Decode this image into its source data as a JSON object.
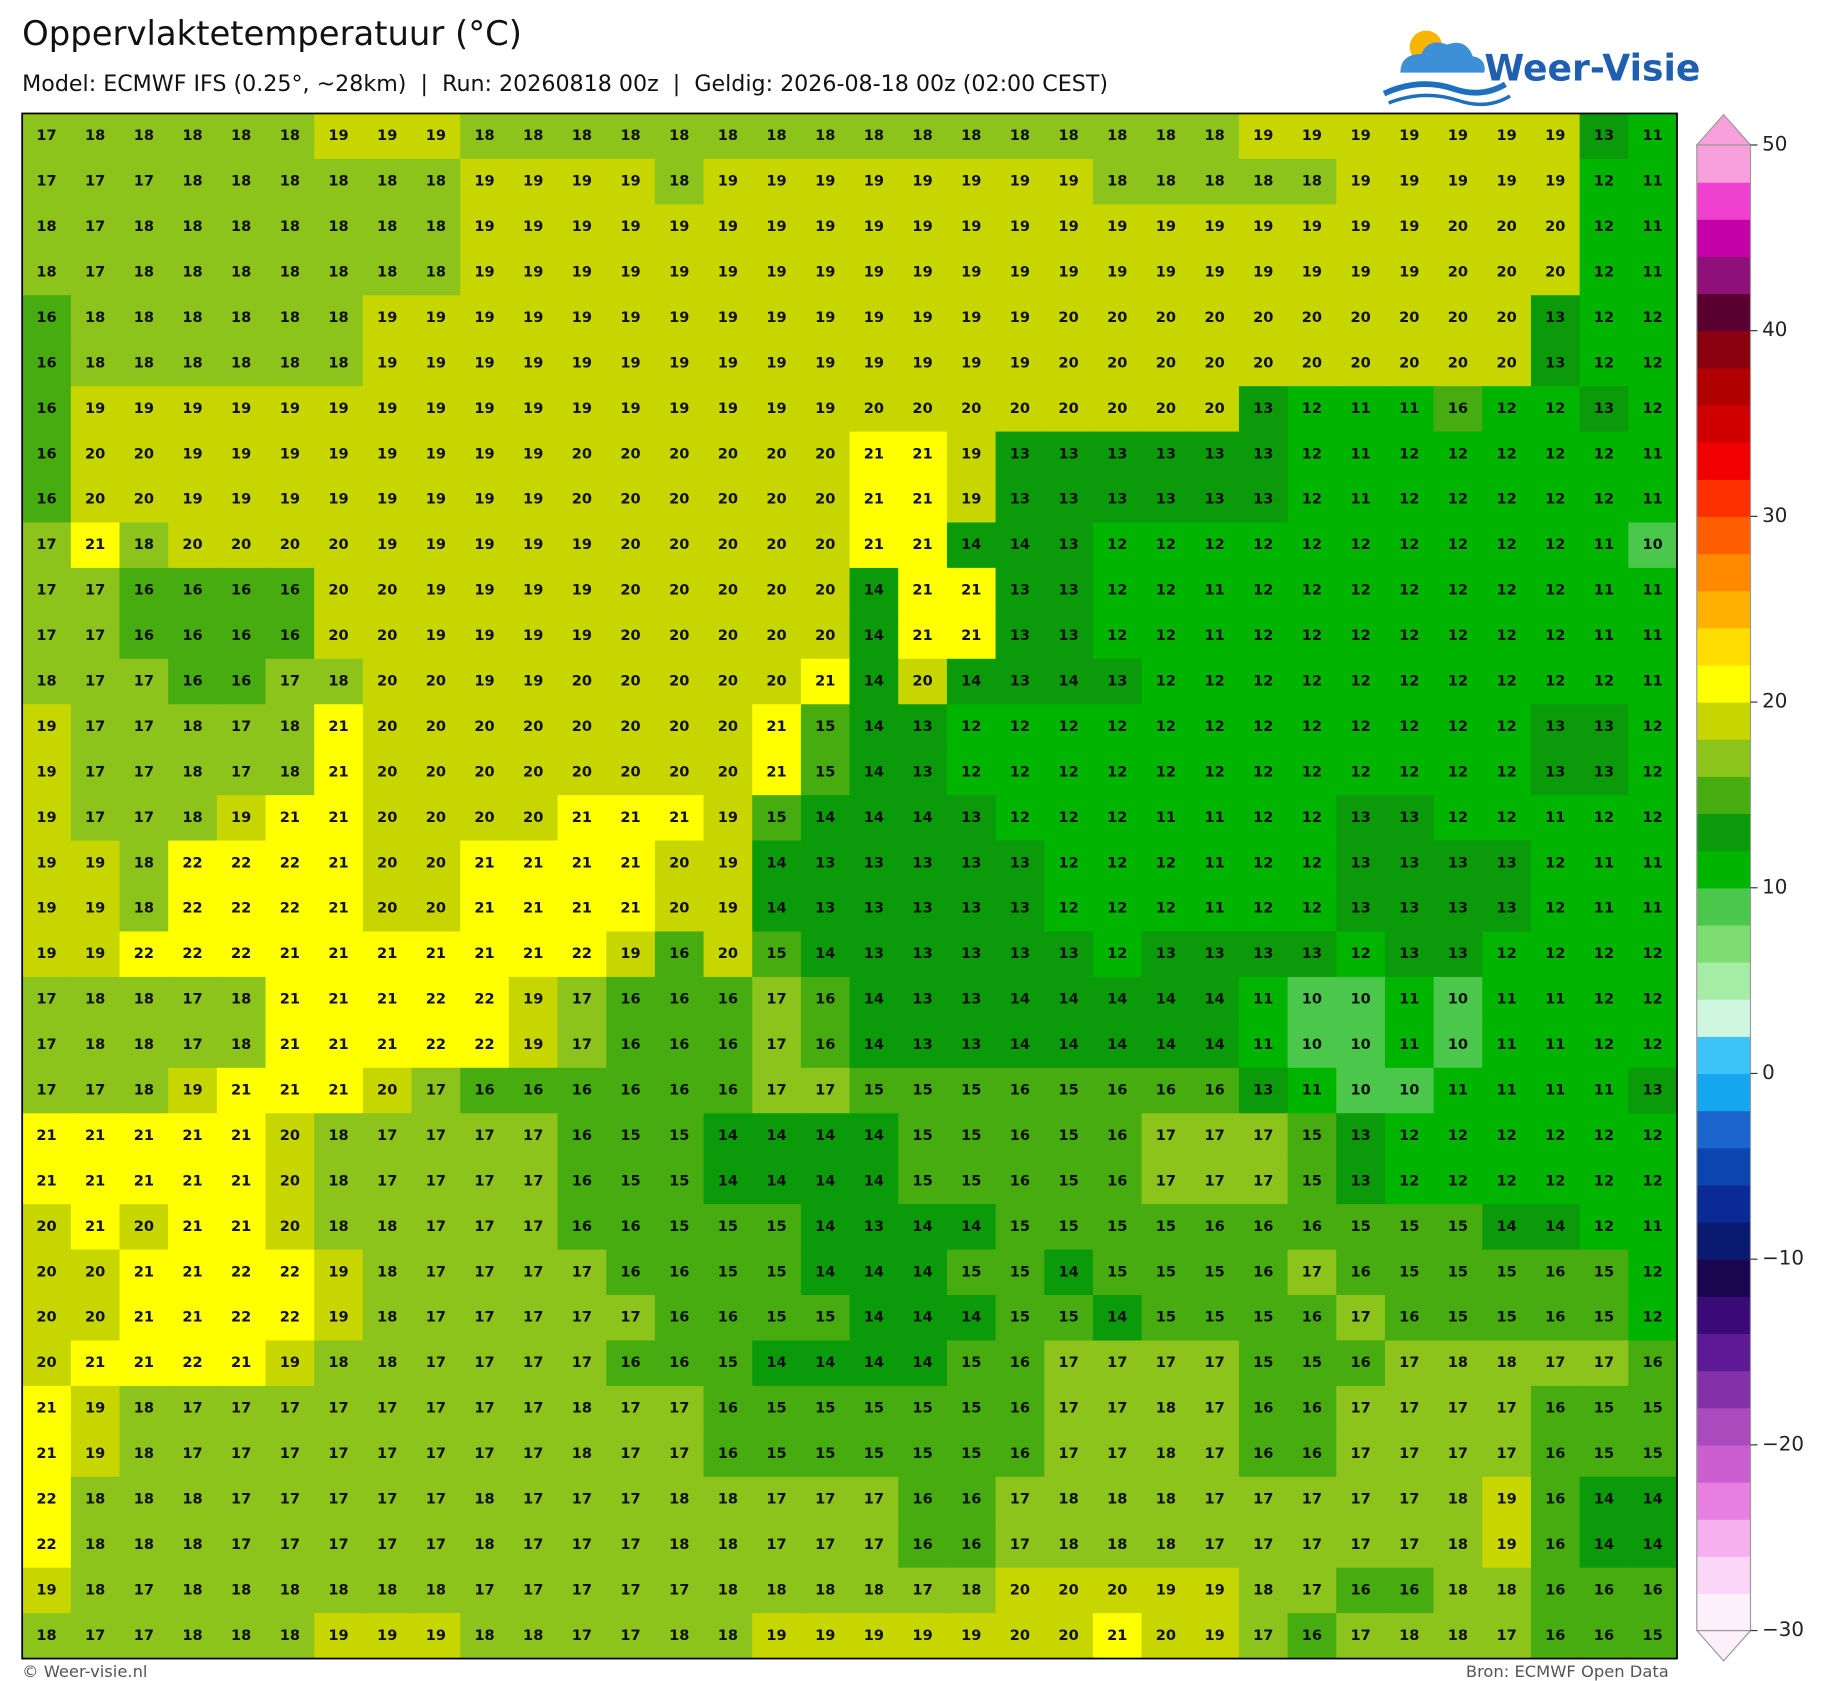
{
  "chart_data": {
    "type": "heatmap",
    "title": "Oppervlaktetemperatuur (°C)",
    "subtitle": "Model: ECMWF IFS (0.25°, ~28km)  |  Run: 20260818 00z  |  Geldig: 2026-08-18 00z (02:00 CEST)",
    "logo": "Weer-Visie",
    "footer_left": "© Weer-visie.nl",
    "footer_right": "Bron: ECMWF Open Data",
    "values": [
      [
        17,
        18,
        18,
        18,
        18,
        18,
        19,
        19,
        19,
        18,
        18,
        18,
        18,
        18,
        18,
        18,
        18,
        18,
        18,
        18,
        18,
        18,
        18,
        18,
        18,
        19,
        19,
        19,
        19,
        19,
        19,
        19,
        13,
        11
      ],
      [
        17,
        17,
        17,
        18,
        18,
        18,
        18,
        18,
        18,
        19,
        19,
        19,
        19,
        18,
        19,
        19,
        19,
        19,
        19,
        19,
        19,
        19,
        18,
        18,
        18,
        18,
        18,
        19,
        19,
        19,
        19,
        19,
        12,
        11
      ],
      [
        18,
        17,
        18,
        18,
        18,
        18,
        18,
        18,
        18,
        19,
        19,
        19,
        19,
        19,
        19,
        19,
        19,
        19,
        19,
        19,
        19,
        19,
        19,
        19,
        19,
        19,
        19,
        19,
        19,
        20,
        20,
        20,
        12,
        11
      ],
      [
        18,
        17,
        18,
        18,
        18,
        18,
        18,
        18,
        18,
        19,
        19,
        19,
        19,
        19,
        19,
        19,
        19,
        19,
        19,
        19,
        19,
        19,
        19,
        19,
        19,
        19,
        19,
        19,
        19,
        20,
        20,
        20,
        12,
        11
      ],
      [
        16,
        18,
        18,
        18,
        18,
        18,
        18,
        19,
        19,
        19,
        19,
        19,
        19,
        19,
        19,
        19,
        19,
        19,
        19,
        19,
        19,
        20,
        20,
        20,
        20,
        20,
        20,
        20,
        20,
        20,
        20,
        13,
        12,
        12
      ],
      [
        16,
        18,
        18,
        18,
        18,
        18,
        18,
        19,
        19,
        19,
        19,
        19,
        19,
        19,
        19,
        19,
        19,
        19,
        19,
        19,
        19,
        20,
        20,
        20,
        20,
        20,
        20,
        20,
        20,
        20,
        20,
        13,
        12,
        12
      ],
      [
        16,
        19,
        19,
        19,
        19,
        19,
        19,
        19,
        19,
        19,
        19,
        19,
        19,
        19,
        19,
        19,
        19,
        20,
        20,
        20,
        20,
        20,
        20,
        20,
        20,
        13,
        12,
        11,
        11,
        16,
        12,
        12,
        13,
        12
      ],
      [
        16,
        20,
        20,
        19,
        19,
        19,
        19,
        19,
        19,
        19,
        19,
        20,
        20,
        20,
        20,
        20,
        20,
        21,
        21,
        19,
        13,
        13,
        13,
        13,
        13,
        13,
        12,
        11,
        12,
        12,
        12,
        12,
        12,
        11
      ],
      [
        16,
        20,
        20,
        19,
        19,
        19,
        19,
        19,
        19,
        19,
        19,
        20,
        20,
        20,
        20,
        20,
        20,
        21,
        21,
        19,
        13,
        13,
        13,
        13,
        13,
        13,
        12,
        11,
        12,
        12,
        12,
        12,
        12,
        11
      ],
      [
        17,
        21,
        18,
        20,
        20,
        20,
        20,
        19,
        19,
        19,
        19,
        19,
        20,
        20,
        20,
        20,
        20,
        21,
        21,
        14,
        14,
        13,
        12,
        12,
        12,
        12,
        12,
        12,
        12,
        12,
        12,
        12,
        11,
        10
      ],
      [
        17,
        17,
        16,
        16,
        16,
        16,
        20,
        20,
        19,
        19,
        19,
        19,
        20,
        20,
        20,
        20,
        20,
        14,
        21,
        21,
        13,
        13,
        12,
        12,
        11,
        12,
        12,
        12,
        12,
        12,
        12,
        12,
        11,
        11
      ],
      [
        17,
        17,
        16,
        16,
        16,
        16,
        20,
        20,
        19,
        19,
        19,
        19,
        20,
        20,
        20,
        20,
        20,
        14,
        21,
        21,
        13,
        13,
        12,
        12,
        11,
        12,
        12,
        12,
        12,
        12,
        12,
        12,
        11,
        11
      ],
      [
        18,
        17,
        17,
        16,
        16,
        17,
        18,
        20,
        20,
        19,
        19,
        20,
        20,
        20,
        20,
        20,
        21,
        14,
        20,
        14,
        13,
        14,
        13,
        12,
        12,
        12,
        12,
        12,
        12,
        12,
        12,
        12,
        12,
        11
      ],
      [
        19,
        17,
        17,
        18,
        17,
        18,
        21,
        20,
        20,
        20,
        20,
        20,
        20,
        20,
        20,
        21,
        15,
        14,
        13,
        12,
        12,
        12,
        12,
        12,
        12,
        12,
        12,
        12,
        12,
        12,
        12,
        13,
        13,
        12
      ],
      [
        19,
        17,
        17,
        18,
        17,
        18,
        21,
        20,
        20,
        20,
        20,
        20,
        20,
        20,
        20,
        21,
        15,
        14,
        13,
        12,
        12,
        12,
        12,
        12,
        12,
        12,
        12,
        12,
        12,
        12,
        12,
        13,
        13,
        12
      ],
      [
        19,
        17,
        17,
        18,
        19,
        21,
        21,
        20,
        20,
        20,
        20,
        21,
        21,
        21,
        19,
        15,
        14,
        14,
        14,
        13,
        12,
        12,
        12,
        11,
        11,
        12,
        12,
        13,
        13,
        12,
        12,
        11,
        12,
        12
      ],
      [
        19,
        19,
        18,
        22,
        22,
        22,
        21,
        20,
        20,
        21,
        21,
        21,
        21,
        20,
        19,
        14,
        13,
        13,
        13,
        13,
        13,
        12,
        12,
        12,
        11,
        12,
        12,
        13,
        13,
        13,
        13,
        12,
        11,
        11
      ],
      [
        19,
        19,
        18,
        22,
        22,
        22,
        21,
        20,
        20,
        21,
        21,
        21,
        21,
        20,
        19,
        14,
        13,
        13,
        13,
        13,
        13,
        12,
        12,
        12,
        11,
        12,
        12,
        13,
        13,
        13,
        13,
        12,
        11,
        11
      ],
      [
        19,
        19,
        22,
        22,
        22,
        21,
        21,
        21,
        21,
        21,
        21,
        22,
        19,
        16,
        20,
        15,
        14,
        13,
        13,
        13,
        13,
        13,
        12,
        13,
        13,
        13,
        13,
        12,
        13,
        13,
        12,
        12,
        12,
        12
      ],
      [
        17,
        18,
        18,
        17,
        18,
        21,
        21,
        21,
        22,
        22,
        19,
        17,
        16,
        16,
        16,
        17,
        16,
        14,
        13,
        13,
        14,
        14,
        14,
        14,
        14,
        11,
        10,
        10,
        11,
        10,
        11,
        11,
        12,
        12
      ],
      [
        17,
        18,
        18,
        17,
        18,
        21,
        21,
        21,
        22,
        22,
        19,
        17,
        16,
        16,
        16,
        17,
        16,
        14,
        13,
        13,
        14,
        14,
        14,
        14,
        14,
        11,
        10,
        10,
        11,
        10,
        11,
        11,
        12,
        12
      ],
      [
        17,
        17,
        18,
        19,
        21,
        21,
        21,
        20,
        17,
        16,
        16,
        16,
        16,
        16,
        16,
        17,
        17,
        15,
        15,
        15,
        16,
        15,
        16,
        16,
        16,
        13,
        11,
        10,
        10,
        11,
        11,
        11,
        11,
        13
      ],
      [
        21,
        21,
        21,
        21,
        21,
        20,
        18,
        17,
        17,
        17,
        17,
        16,
        15,
        15,
        14,
        14,
        14,
        14,
        15,
        15,
        16,
        15,
        16,
        17,
        17,
        17,
        15,
        13,
        12,
        12,
        12,
        12,
        12,
        12
      ],
      [
        21,
        21,
        21,
        21,
        21,
        20,
        18,
        17,
        17,
        17,
        17,
        16,
        15,
        15,
        14,
        14,
        14,
        14,
        15,
        15,
        16,
        15,
        16,
        17,
        17,
        17,
        15,
        13,
        12,
        12,
        12,
        12,
        12,
        12
      ],
      [
        20,
        21,
        20,
        21,
        21,
        20,
        18,
        18,
        17,
        17,
        17,
        16,
        16,
        15,
        15,
        15,
        14,
        13,
        14,
        14,
        15,
        15,
        15,
        15,
        16,
        16,
        16,
        15,
        15,
        15,
        14,
        14,
        12,
        11
      ],
      [
        20,
        20,
        21,
        21,
        22,
        22,
        19,
        18,
        17,
        17,
        17,
        17,
        16,
        16,
        15,
        15,
        14,
        14,
        14,
        15,
        15,
        14,
        15,
        15,
        15,
        16,
        17,
        16,
        15,
        15,
        15,
        16,
        15,
        12
      ],
      [
        20,
        20,
        21,
        21,
        22,
        22,
        19,
        18,
        17,
        17,
        17,
        17,
        17,
        16,
        16,
        15,
        15,
        14,
        14,
        14,
        15,
        15,
        14,
        15,
        15,
        15,
        16,
        17,
        16,
        15,
        15,
        16,
        15,
        12
      ],
      [
        20,
        21,
        21,
        22,
        21,
        19,
        18,
        18,
        17,
        17,
        17,
        17,
        16,
        16,
        15,
        14,
        14,
        14,
        14,
        15,
        16,
        17,
        17,
        17,
        17,
        15,
        15,
        16,
        17,
        18,
        18,
        17,
        17,
        16
      ],
      [
        21,
        19,
        18,
        17,
        17,
        17,
        17,
        17,
        17,
        17,
        17,
        18,
        17,
        17,
        16,
        15,
        15,
        15,
        15,
        15,
        16,
        17,
        17,
        18,
        17,
        16,
        16,
        17,
        17,
        17,
        17,
        16,
        15,
        15
      ],
      [
        21,
        19,
        18,
        17,
        17,
        17,
        17,
        17,
        17,
        17,
        17,
        18,
        17,
        17,
        16,
        15,
        15,
        15,
        15,
        15,
        16,
        17,
        17,
        18,
        17,
        16,
        16,
        17,
        17,
        17,
        17,
        16,
        15,
        15
      ],
      [
        22,
        18,
        18,
        18,
        17,
        17,
        17,
        17,
        17,
        18,
        17,
        17,
        17,
        18,
        18,
        17,
        17,
        17,
        16,
        16,
        17,
        18,
        18,
        18,
        17,
        17,
        17,
        17,
        17,
        18,
        19,
        16,
        14,
        14
      ],
      [
        22,
        18,
        18,
        18,
        17,
        17,
        17,
        17,
        17,
        18,
        17,
        17,
        17,
        18,
        18,
        17,
        17,
        17,
        16,
        16,
        17,
        18,
        18,
        18,
        17,
        17,
        17,
        17,
        17,
        18,
        19,
        16,
        14,
        14
      ],
      [
        19,
        18,
        17,
        18,
        18,
        18,
        18,
        18,
        18,
        17,
        17,
        17,
        17,
        17,
        18,
        18,
        18,
        18,
        17,
        18,
        20,
        20,
        20,
        19,
        19,
        18,
        17,
        16,
        16,
        18,
        18,
        16,
        16,
        16
      ],
      [
        18,
        17,
        17,
        18,
        18,
        18,
        19,
        19,
        19,
        18,
        18,
        17,
        17,
        18,
        18,
        19,
        19,
        19,
        19,
        19,
        20,
        20,
        21,
        20,
        19,
        17,
        16,
        17,
        18,
        18,
        17,
        16,
        16,
        15
      ]
    ],
    "colorbar": {
      "ylim": [
        -30,
        50
      ],
      "yticks": [
        {
          "value": -30,
          "label": "−30"
        },
        {
          "value": -20,
          "label": "−20"
        },
        {
          "value": -10,
          "label": "−10"
        },
        0,
        10,
        20,
        30,
        40,
        50
      ],
      "colors": [
        "#fdf0fa",
        "#fbd6f6",
        "#f7b0ee",
        "#e67fe0",
        "#cc5fd0",
        "#a94bbc",
        "#8430a8",
        "#5e1a96",
        "#3a0a78",
        "#1a0650",
        "#0a1a70",
        "#0a2a95",
        "#0c44b0",
        "#1a66cc",
        "#14a6ef",
        "#3cc4f8",
        "#cff7e0",
        "#a6eca5",
        "#7ddc72",
        "#4bc84b",
        "#00b400",
        "#0a9a0a",
        "#46ac10",
        "#8cc41c",
        "#c8d600",
        "#ffff00",
        "#ffdd00",
        "#ffb000",
        "#ff8a00",
        "#ff5f00",
        "#ff3000",
        "#f00000",
        "#d00000",
        "#b00000",
        "#8a0010",
        "#5a0030",
        "#90107a",
        "#c400a8",
        "#f040d0",
        "#f8a0dc"
      ]
    }
  }
}
